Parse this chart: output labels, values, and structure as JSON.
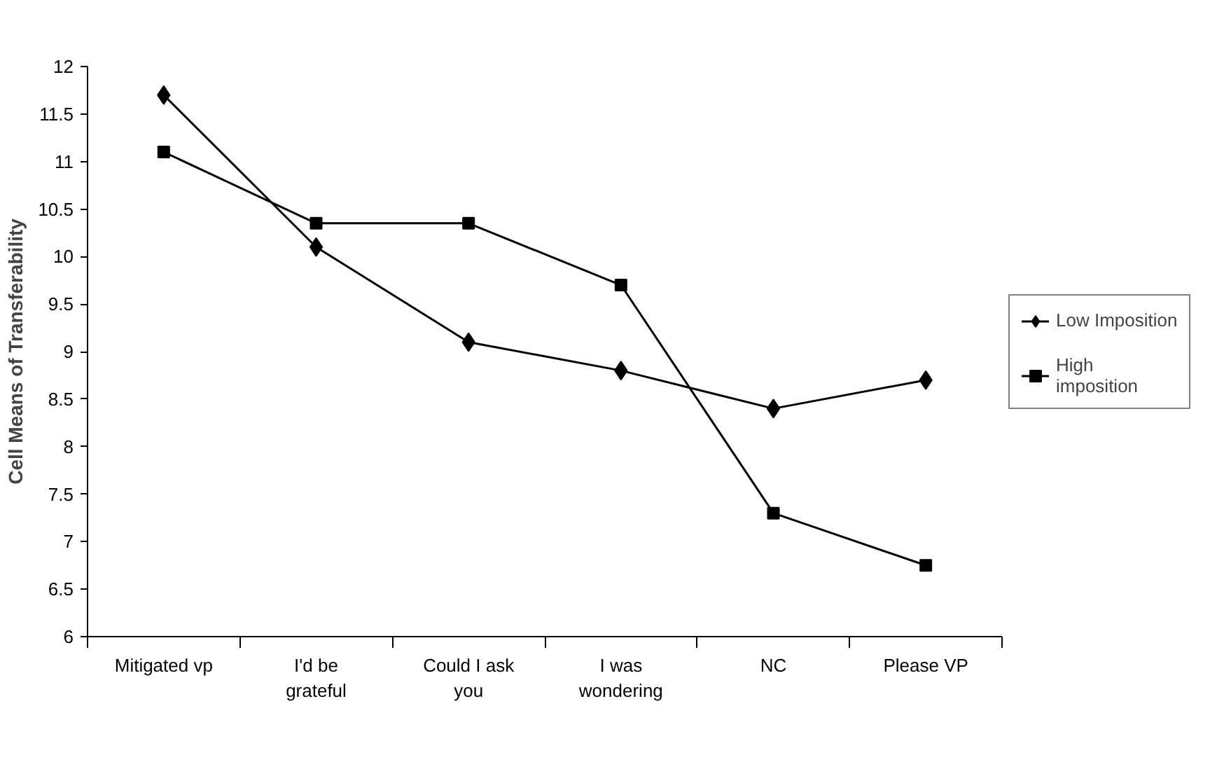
{
  "chart_data": {
    "type": "line",
    "ylabel": "Cell Means of Transferability",
    "categories": [
      "Mitigated vp",
      "I'd be grateful",
      "Could I ask you",
      "I was wondering",
      "NC",
      "Please VP"
    ],
    "series": [
      {
        "name": "Low Imposition",
        "color": "#000000",
        "marker": "diamond",
        "values": [
          11.7,
          10.1,
          9.1,
          8.8,
          8.4,
          8.7
        ]
      },
      {
        "name": "High imposition",
        "color": "#000000",
        "marker": "square",
        "values": [
          11.1,
          10.35,
          10.35,
          9.7,
          7.3,
          6.75
        ]
      }
    ],
    "ylim": [
      6,
      12
    ],
    "yticks": [
      6,
      6.5,
      7,
      7.5,
      8,
      8.5,
      9,
      9.5,
      10,
      10.5,
      11,
      11.5,
      12
    ],
    "grid": false,
    "legend": "right",
    "line_style": "solid"
  }
}
